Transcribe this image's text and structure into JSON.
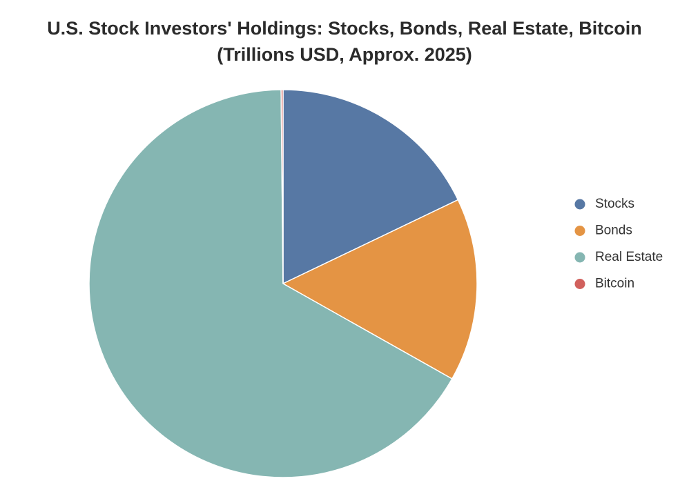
{
  "chart_data": {
    "type": "pie",
    "title": "U.S. Stock Investors' Holdings: Stocks, Bonds, Real Estate, Bitcoin (Trillions USD, Approx. 2025)",
    "categories": [
      "Stocks",
      "Bonds",
      "Real Estate",
      "Bitcoin"
    ],
    "values": [
      55,
      47,
      205,
      0.5
    ],
    "colors": [
      "#5778a4",
      "#e49444",
      "#85b6b2",
      "#d1615d"
    ],
    "legend": "right"
  }
}
